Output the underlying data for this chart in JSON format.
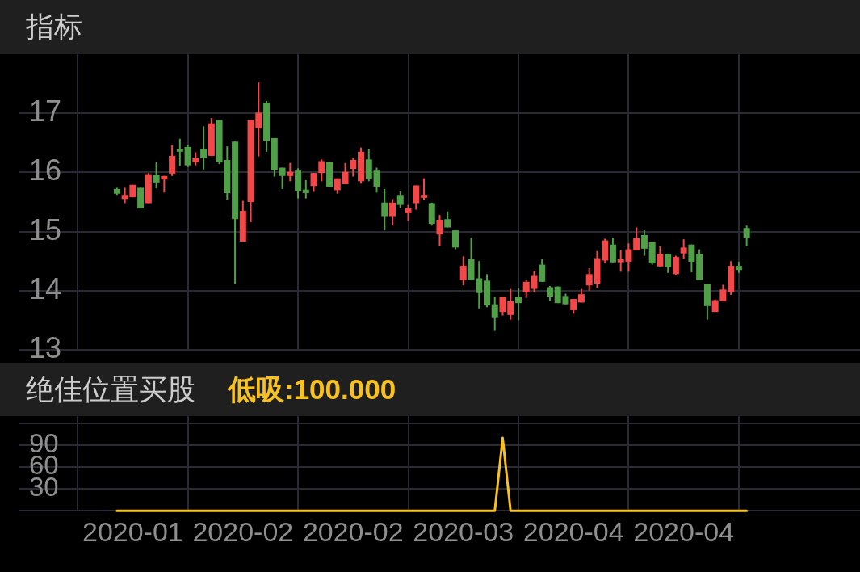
{
  "chart_data": [
    {
      "type": "candlestick",
      "title": "指标",
      "categories": [
        null,
        null,
        "2020-01",
        null,
        null,
        null,
        null,
        null,
        null,
        null,
        null,
        null,
        null,
        null,
        null,
        null,
        "2020-02",
        null,
        null,
        null,
        null,
        null,
        null,
        null,
        null,
        null,
        null,
        null,
        null,
        null,
        "2020-02",
        null,
        null,
        null,
        null,
        null,
        null,
        null,
        null,
        null,
        null,
        null,
        null,
        null,
        "2020-03",
        null,
        null,
        null,
        null,
        null,
        null,
        null,
        null,
        null,
        null,
        null,
        null,
        null,
        "2020-04",
        null,
        null,
        null,
        null,
        null,
        null,
        null,
        null,
        null,
        null,
        null,
        null,
        null,
        "2020-04",
        null,
        null,
        null,
        null,
        null,
        null,
        null,
        null
      ],
      "ohlc": [
        [
          15.72,
          15.74,
          15.62,
          15.64
        ],
        [
          15.55,
          15.74,
          15.48,
          15.62
        ],
        [
          15.58,
          15.79,
          15.58,
          15.79
        ],
        [
          15.74,
          15.74,
          15.39,
          15.39
        ],
        [
          15.48,
          15.99,
          15.48,
          15.97
        ],
        [
          15.96,
          16.17,
          15.73,
          15.83
        ],
        [
          15.88,
          15.94,
          15.66,
          15.94
        ],
        [
          15.98,
          16.46,
          15.94,
          16.28
        ],
        [
          16.4,
          16.57,
          16.11,
          16.35
        ],
        [
          16.43,
          16.46,
          16.09,
          16.12
        ],
        [
          16.17,
          16.34,
          16.12,
          16.24
        ],
        [
          16.4,
          16.78,
          16.05,
          16.25
        ],
        [
          16.28,
          16.92,
          16.28,
          16.83
        ],
        [
          16.89,
          16.89,
          16.14,
          16.18
        ],
        [
          16.21,
          16.44,
          15.54,
          15.65
        ],
        [
          16.52,
          16.52,
          14.11,
          15.21
        ],
        [
          14.83,
          15.52,
          14.83,
          15.35
        ],
        [
          15.5,
          16.89,
          15.16,
          16.89
        ],
        [
          16.75,
          17.52,
          16.27,
          17.01
        ],
        [
          17.18,
          17.21,
          16.35,
          16.53
        ],
        [
          16.58,
          16.58,
          15.93,
          16.04
        ],
        [
          16.08,
          16.08,
          15.72,
          15.94
        ],
        [
          15.94,
          16.16,
          15.85,
          16.01
        ],
        [
          16.03,
          16.07,
          15.56,
          15.69
        ],
        [
          15.71,
          15.87,
          15.56,
          15.65
        ],
        [
          15.77,
          15.99,
          15.67,
          15.99
        ],
        [
          15.99,
          16.22,
          15.85,
          16.19
        ],
        [
          16.18,
          16.18,
          15.75,
          15.75
        ],
        [
          15.7,
          15.9,
          15.64,
          15.9
        ],
        [
          15.8,
          16.16,
          15.8,
          16.01
        ],
        [
          16.06,
          16.25,
          15.93,
          16.21
        ],
        [
          15.85,
          16.42,
          15.81,
          16.35
        ],
        [
          16.22,
          16.39,
          15.85,
          15.89
        ],
        [
          16.03,
          16.08,
          15.66,
          15.76
        ],
        [
          15.49,
          15.72,
          15.02,
          15.26
        ],
        [
          15.26,
          15.55,
          15.1,
          15.49
        ],
        [
          15.62,
          15.68,
          15.4,
          15.45
        ],
        [
          15.31,
          15.45,
          15.18,
          15.39
        ],
        [
          15.48,
          15.78,
          15.37,
          15.78
        ],
        [
          15.57,
          15.9,
          15.54,
          15.62
        ],
        [
          15.48,
          15.49,
          15.1,
          15.13
        ],
        [
          14.95,
          15.28,
          14.76,
          15.2
        ],
        [
          15.21,
          15.34,
          15.07,
          15.07
        ],
        [
          15.02,
          15.02,
          14.7,
          14.73
        ],
        [
          14.18,
          14.58,
          14.09,
          14.42
        ],
        [
          14.53,
          14.9,
          14.18,
          14.18
        ],
        [
          14.21,
          14.5,
          13.7,
          13.96
        ],
        [
          14.17,
          14.28,
          13.72,
          13.75
        ],
        [
          13.77,
          13.89,
          13.32,
          13.55
        ],
        [
          13.64,
          13.89,
          13.58,
          13.89
        ],
        [
          13.59,
          14.03,
          13.51,
          13.82
        ],
        [
          13.89,
          14.04,
          13.5,
          13.79
        ],
        [
          13.97,
          14.18,
          13.88,
          14.15
        ],
        [
          14.03,
          14.34,
          13.97,
          14.25
        ],
        [
          14.44,
          14.53,
          14.15,
          14.15
        ],
        [
          14.06,
          14.08,
          13.83,
          13.9
        ],
        [
          14.07,
          14.07,
          13.79,
          13.79
        ],
        [
          13.91,
          13.95,
          13.77,
          13.77
        ],
        [
          13.67,
          13.86,
          13.61,
          13.86
        ],
        [
          13.8,
          14.03,
          13.8,
          13.94
        ],
        [
          14.09,
          14.38,
          14.0,
          14.28
        ],
        [
          14.12,
          14.67,
          14.05,
          14.55
        ],
        [
          14.51,
          14.88,
          14.46,
          14.85
        ],
        [
          14.78,
          14.9,
          14.48,
          14.48
        ],
        [
          14.48,
          14.68,
          14.32,
          14.53
        ],
        [
          14.49,
          14.8,
          14.32,
          14.7
        ],
        [
          14.68,
          15.07,
          14.68,
          14.89
        ],
        [
          14.94,
          15.02,
          14.59,
          14.71
        ],
        [
          14.82,
          14.82,
          14.44,
          14.46
        ],
        [
          14.41,
          14.75,
          14.41,
          14.62
        ],
        [
          14.62,
          14.62,
          14.3,
          14.4
        ],
        [
          14.28,
          14.59,
          14.26,
          14.57
        ],
        [
          14.63,
          14.87,
          14.54,
          14.73
        ],
        [
          14.78,
          14.78,
          14.31,
          14.49
        ],
        [
          14.62,
          14.7,
          14.18,
          14.18
        ],
        [
          14.11,
          14.11,
          13.51,
          13.74
        ],
        [
          13.64,
          13.85,
          13.64,
          13.84
        ],
        [
          13.82,
          14.1,
          13.82,
          14.02
        ],
        [
          13.98,
          14.5,
          13.93,
          14.42
        ],
        [
          14.42,
          14.49,
          14.3,
          14.35
        ],
        [
          15.06,
          15.1,
          14.75,
          14.89
        ]
      ],
      "colors": [
        "#4fa046",
        "#f44848",
        "#f44848",
        "#4fa046",
        "#f44848",
        "#4fa046",
        "#f44848",
        "#f44848",
        "#4fa046",
        "#4fa046",
        "#f44848",
        "#4fa046",
        "#f44848",
        "#4fa046",
        "#4fa046",
        "#4fa046",
        "#f44848",
        "#f44848",
        "#f44848",
        "#4fa046",
        "#4fa046",
        "#4fa046",
        "#f44848",
        "#4fa046",
        "#4fa046",
        "#f44848",
        "#f44848",
        "#4fa046",
        "#f44848",
        "#f44848",
        "#f44848",
        "#f44848",
        "#4fa046",
        "#4fa046",
        "#4fa046",
        "#f44848",
        "#4fa046",
        "#f44848",
        "#f44848",
        "#f44848",
        "#4fa046",
        "#f44848",
        "#4fa046",
        "#4fa046",
        "#f44848",
        "#4fa046",
        "#4fa046",
        "#4fa046",
        "#4fa046",
        "#f44848",
        "#f44848",
        "#4fa046",
        "#f44848",
        "#f44848",
        "#4fa046",
        "#4fa046",
        "#4fa046",
        "#4fa046",
        "#f44848",
        "#f44848",
        "#f44848",
        "#f44848",
        "#f44848",
        "#4fa046",
        "#f44848",
        "#f44848",
        "#f44848",
        "#4fa046",
        "#4fa046",
        "#f44848",
        "#4fa046",
        "#f44848",
        "#f44848",
        "#4fa046",
        "#4fa046",
        "#4fa046",
        "#f44848",
        "#f44848",
        "#f44848",
        "#4fa046",
        "#4fa046"
      ],
      "ylim": [
        13,
        18
      ],
      "yticks": [
        13,
        14,
        15,
        16,
        17
      ],
      "grid": true,
      "tick_labels": "y"
    },
    {
      "type": "line",
      "title": "绝佳位置买股",
      "categories": [
        null,
        null,
        "2020-01",
        null,
        null,
        null,
        null,
        null,
        null,
        null,
        null,
        null,
        null,
        null,
        null,
        null,
        "2020-02",
        null,
        null,
        null,
        null,
        null,
        null,
        null,
        null,
        null,
        null,
        null,
        null,
        null,
        "2020-02",
        null,
        null,
        null,
        null,
        null,
        null,
        null,
        null,
        null,
        null,
        null,
        null,
        null,
        "2020-03",
        null,
        null,
        null,
        null,
        null,
        null,
        null,
        null,
        null,
        null,
        null,
        null,
        null,
        "2020-04",
        null,
        null,
        null,
        null,
        null,
        null,
        null,
        null,
        null,
        null,
        null,
        null,
        null,
        "2020-04",
        null,
        null,
        null,
        null,
        null,
        null,
        null,
        null
      ],
      "series": [
        {
          "name": "低吸:100.000",
          "color": "#f7c220",
          "values": [
            0,
            0,
            0,
            0,
            0,
            0,
            0,
            0,
            0,
            0,
            0,
            0,
            0,
            0,
            0,
            0,
            0,
            0,
            0,
            0,
            0,
            0,
            0,
            0,
            0,
            0,
            0,
            0,
            0,
            0,
            0,
            0,
            0,
            0,
            0,
            0,
            0,
            0,
            0,
            0,
            0,
            0,
            0,
            0,
            0,
            0,
            0,
            0,
            0,
            100,
            0,
            0,
            0,
            0,
            0,
            0,
            0,
            0,
            0,
            0,
            0,
            0,
            0,
            0,
            0,
            0,
            0,
            0,
            0,
            0,
            0,
            0,
            0,
            0,
            0,
            0,
            0,
            0,
            0,
            0,
            0
          ]
        }
      ],
      "ylim": [
        0,
        130
      ],
      "yticks": [
        {
          "value": 0,
          "label": null
        },
        30,
        60,
        90,
        {
          "value": 120,
          "label": null
        }
      ],
      "grid": true,
      "legend": "top left"
    }
  ]
}
